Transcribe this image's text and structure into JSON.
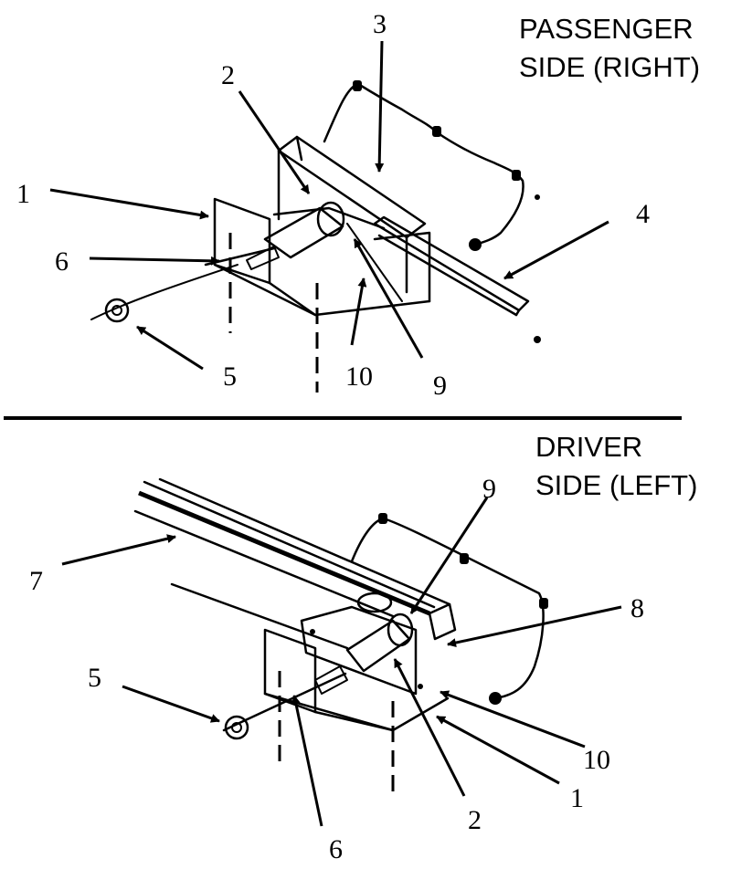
{
  "passenger": {
    "heading_line1": "PASSENGER",
    "heading_line2": "SIDE (RIGHT)",
    "callouts": [
      "1",
      "2",
      "3",
      "4",
      "5",
      "6",
      "9",
      "10"
    ]
  },
  "driver": {
    "heading_line1": "DRIVER",
    "heading_line2": "SIDE (LEFT)",
    "callouts": [
      "1",
      "2",
      "5",
      "6",
      "7",
      "8",
      "9",
      "10"
    ]
  }
}
